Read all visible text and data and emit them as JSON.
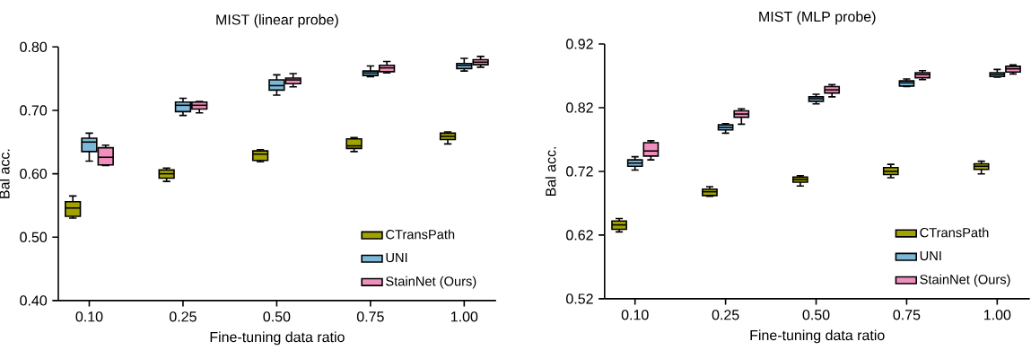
{
  "chart_data": [
    {
      "type": "box",
      "title": "MIST (linear probe)",
      "xlabel": "Fine-tuning data ratio",
      "ylabel": "Bal acc.",
      "categories": [
        "0.10",
        "0.25",
        "0.50",
        "0.75",
        "1.00"
      ],
      "ylim": [
        0.4,
        0.8
      ],
      "yticks": [
        {
          "value": 0.4,
          "label": "0.40"
        },
        {
          "value": 0.5,
          "label": "0.50"
        },
        {
          "value": 0.6,
          "label": "0.60"
        },
        {
          "value": 0.7,
          "label": "0.70"
        },
        {
          "value": 0.8,
          "label": "0.80"
        }
      ],
      "legend": "bottom right",
      "grid": false,
      "series": [
        {
          "name": "CTransPath",
          "color": "#a3a300",
          "boxes": [
            {
              "low": 0.53,
              "q1": 0.533,
              "median": 0.546,
              "q3": 0.556,
              "high": 0.565
            },
            {
              "low": 0.588,
              "q1": 0.593,
              "median": 0.6,
              "q3": 0.606,
              "high": 0.609
            },
            {
              "low": 0.619,
              "q1": 0.621,
              "median": 0.631,
              "q3": 0.636,
              "high": 0.638
            },
            {
              "low": 0.635,
              "q1": 0.64,
              "median": 0.644,
              "q3": 0.655,
              "high": 0.657
            },
            {
              "low": 0.647,
              "q1": 0.654,
              "median": 0.659,
              "q3": 0.664,
              "high": 0.666
            }
          ]
        },
        {
          "name": "UNI",
          "color": "#7db8d8",
          "boxes": [
            {
              "low": 0.62,
              "q1": 0.635,
              "median": 0.65,
              "q3": 0.656,
              "high": 0.664
            },
            {
              "low": 0.692,
              "q1": 0.698,
              "median": 0.708,
              "q3": 0.713,
              "high": 0.719
            },
            {
              "low": 0.724,
              "q1": 0.732,
              "median": 0.739,
              "q3": 0.748,
              "high": 0.756
            },
            {
              "low": 0.753,
              "q1": 0.755,
              "median": 0.759,
              "q3": 0.762,
              "high": 0.77
            },
            {
              "low": 0.762,
              "q1": 0.766,
              "median": 0.771,
              "q3": 0.774,
              "high": 0.782
            }
          ]
        },
        {
          "name": "StainNet (Ours)",
          "color": "#f08fbd",
          "boxes": [
            {
              "low": 0.613,
              "q1": 0.614,
              "median": 0.626,
              "q3": 0.641,
              "high": 0.645
            },
            {
              "low": 0.696,
              "q1": 0.702,
              "median": 0.708,
              "q3": 0.713,
              "high": 0.714
            },
            {
              "low": 0.737,
              "q1": 0.742,
              "median": 0.748,
              "q3": 0.751,
              "high": 0.758
            },
            {
              "low": 0.759,
              "q1": 0.761,
              "median": 0.767,
              "q3": 0.771,
              "high": 0.777
            },
            {
              "low": 0.768,
              "q1": 0.772,
              "median": 0.776,
              "q3": 0.78,
              "high": 0.785
            }
          ]
        }
      ]
    },
    {
      "type": "box",
      "title": "MIST (MLP probe)",
      "xlabel": "Fine-tuning data ratio",
      "ylabel": "Bal acc.",
      "categories": [
        "0.10",
        "0.25",
        "0.50",
        "0.75",
        "1.00"
      ],
      "ylim": [
        0.52,
        0.92
      ],
      "yticks": [
        0.52,
        0.62,
        0.72,
        0.82,
        0.92
      ],
      "legend": "bottom right",
      "grid": false,
      "series": [
        {
          "name": "CTransPath",
          "color": "#a3a300",
          "boxes": [
            {
              "low": 0.625,
              "q1": 0.629,
              "median": 0.636,
              "q3": 0.642,
              "high": 0.646
            },
            {
              "low": 0.681,
              "q1": 0.682,
              "median": 0.688,
              "q3": 0.692,
              "high": 0.696
            },
            {
              "low": 0.697,
              "q1": 0.703,
              "median": 0.707,
              "q3": 0.711,
              "high": 0.713
            },
            {
              "low": 0.71,
              "q1": 0.715,
              "median": 0.72,
              "q3": 0.726,
              "high": 0.731
            },
            {
              "low": 0.716,
              "q1": 0.723,
              "median": 0.728,
              "q3": 0.732,
              "high": 0.736
            }
          ]
        },
        {
          "name": "UNI",
          "color": "#7db8d8",
          "boxes": [
            {
              "low": 0.722,
              "q1": 0.728,
              "median": 0.733,
              "q3": 0.738,
              "high": 0.743
            },
            {
              "low": 0.78,
              "q1": 0.785,
              "median": 0.789,
              "q3": 0.793,
              "high": 0.795
            },
            {
              "low": 0.826,
              "q1": 0.83,
              "median": 0.834,
              "q3": 0.837,
              "high": 0.841
            },
            {
              "low": 0.853,
              "q1": 0.854,
              "median": 0.859,
              "q3": 0.862,
              "high": 0.865
            },
            {
              "low": 0.868,
              "q1": 0.869,
              "median": 0.872,
              "q3": 0.875,
              "high": 0.88
            }
          ]
        },
        {
          "name": "StainNet (Ours)",
          "color": "#f08fbd",
          "boxes": [
            {
              "low": 0.738,
              "q1": 0.744,
              "median": 0.752,
              "q3": 0.765,
              "high": 0.768
            },
            {
              "low": 0.794,
              "q1": 0.805,
              "median": 0.81,
              "q3": 0.815,
              "high": 0.818
            },
            {
              "low": 0.837,
              "q1": 0.843,
              "median": 0.848,
              "q3": 0.853,
              "high": 0.856
            },
            {
              "low": 0.864,
              "q1": 0.867,
              "median": 0.872,
              "q3": 0.875,
              "high": 0.878
            },
            {
              "low": 0.873,
              "q1": 0.876,
              "median": 0.881,
              "q3": 0.885,
              "high": 0.887
            }
          ]
        }
      ]
    }
  ]
}
